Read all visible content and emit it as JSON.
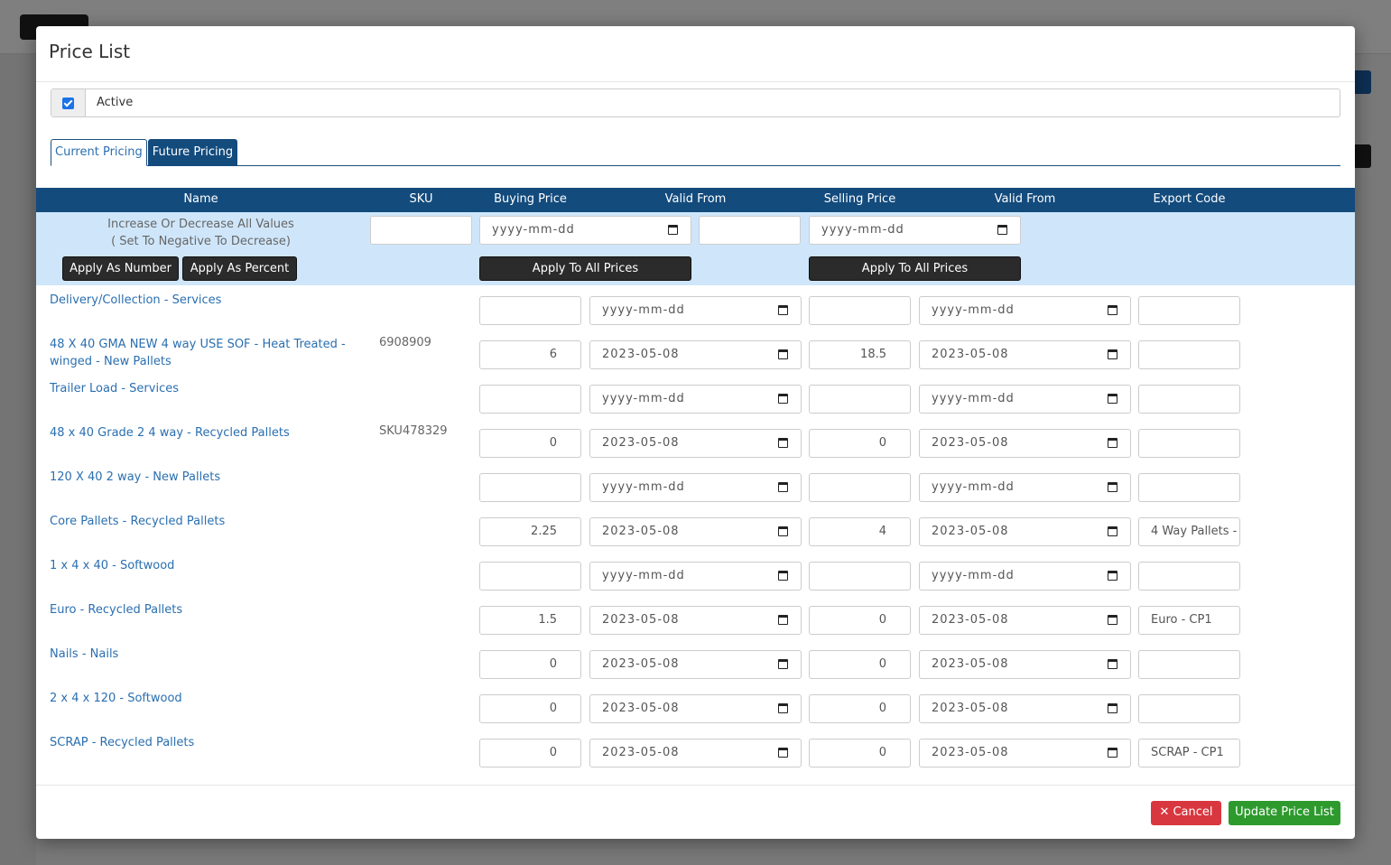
{
  "modal": {
    "title": "Price List",
    "active_label": "Active",
    "active_checked": true,
    "tabs": [
      {
        "label": "Current Pricing"
      },
      {
        "label": "Future Pricing"
      }
    ]
  },
  "table": {
    "headers": {
      "name": "Name",
      "sku": "SKU",
      "buying_price": "Buying Price",
      "buying_valid_from": "Valid From",
      "selling_price": "Selling Price",
      "selling_valid_from": "Valid From",
      "export_code": "Export Code"
    },
    "controls": {
      "label_line1": "Increase Or Decrease All Values",
      "label_line2": "( Set To Negative To Decrease)",
      "adjust_value": "",
      "buying_date_placeholder": "yyyy-mm-dd",
      "middle_value": "",
      "selling_date_placeholder": "yyyy-mm-dd",
      "apply_number": "Apply As Number",
      "apply_percent": "Apply As Percent",
      "apply_buying": "Apply To All Prices",
      "apply_selling": "Apply To All Prices"
    },
    "date_placeholder": "yyyy-mm-dd",
    "rows": [
      {
        "name": "Delivery/Collection - Services",
        "sku": "",
        "buying_price": "",
        "buying_valid_from": "yyyy-mm-dd",
        "selling_price": "",
        "selling_valid_from": "yyyy-mm-dd",
        "export_code": ""
      },
      {
        "name": "48 X 40 GMA NEW 4 way USE SOF - Heat Treated - winged - New Pallets",
        "sku": "6908909",
        "buying_price": "6",
        "buying_valid_from": "2023-05-08",
        "selling_price": "18.5",
        "selling_valid_from": "2023-05-08",
        "export_code": ""
      },
      {
        "name": "Trailer Load - Services",
        "sku": "",
        "buying_price": "",
        "buying_valid_from": "yyyy-mm-dd",
        "selling_price": "",
        "selling_valid_from": "yyyy-mm-dd",
        "export_code": ""
      },
      {
        "name": "48 x 40 Grade 2 4 way - Recycled Pallets",
        "sku": "SKU478329",
        "buying_price": "0",
        "buying_valid_from": "2023-05-08",
        "selling_price": "0",
        "selling_valid_from": "2023-05-08",
        "export_code": ""
      },
      {
        "name": "120 X 40 2 way - New Pallets",
        "sku": "",
        "buying_price": "",
        "buying_valid_from": "yyyy-mm-dd",
        "selling_price": "",
        "selling_valid_from": "yyyy-mm-dd",
        "export_code": ""
      },
      {
        "name": "Core Pallets - Recycled Pallets",
        "sku": "",
        "buying_price": "2.25",
        "buying_valid_from": "2023-05-08",
        "selling_price": "4",
        "selling_valid_from": "2023-05-08",
        "export_code": "4 Way Pallets -"
      },
      {
        "name": "1 x 4 x 40 - Softwood",
        "sku": "",
        "buying_price": "",
        "buying_valid_from": "yyyy-mm-dd",
        "selling_price": "",
        "selling_valid_from": "yyyy-mm-dd",
        "export_code": ""
      },
      {
        "name": "Euro - Recycled Pallets",
        "sku": "",
        "buying_price": "1.5",
        "buying_valid_from": "2023-05-08",
        "selling_price": "0",
        "selling_valid_from": "2023-05-08",
        "export_code": "Euro - CP1"
      },
      {
        "name": "Nails - Nails",
        "sku": "",
        "buying_price": "0",
        "buying_valid_from": "2023-05-08",
        "selling_price": "0",
        "selling_valid_from": "2023-05-08",
        "export_code": ""
      },
      {
        "name": "2 x 4 x 120 - Softwood",
        "sku": "",
        "buying_price": "0",
        "buying_valid_from": "2023-05-08",
        "selling_price": "0",
        "selling_valid_from": "2023-05-08",
        "export_code": ""
      },
      {
        "name": "SCRAP - Recycled Pallets",
        "sku": "",
        "buying_price": "0",
        "buying_valid_from": "2023-05-08",
        "selling_price": "0",
        "selling_valid_from": "2023-05-08",
        "export_code": "SCRAP - CP1"
      }
    ]
  },
  "footer": {
    "cancel_label": "✕ Cancel",
    "update_label": "Update Price List"
  },
  "colors": {
    "header_bg": "#134b7d",
    "controls_bg": "#cfe6fa",
    "link": "#2a6fb0",
    "cancel": "#d9373f",
    "update": "#2e9a2e"
  }
}
